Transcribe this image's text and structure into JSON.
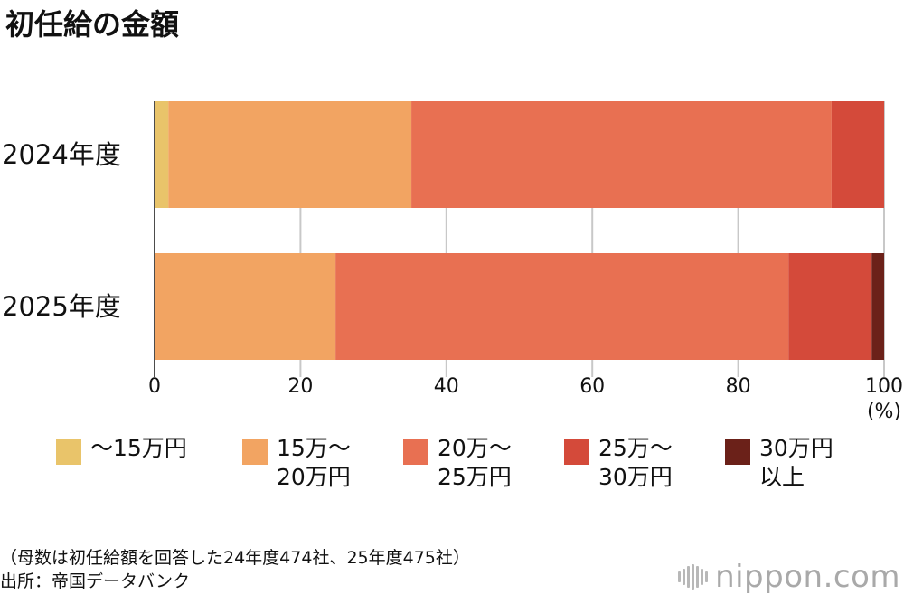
{
  "title": "初任給の金額",
  "chart_data": {
    "type": "bar",
    "orientation": "horizontal",
    "stacked": true,
    "categories": [
      "2024年度",
      "2025年度"
    ],
    "series": [
      {
        "name": "〜15万円",
        "color": "#e9c46a",
        "values": [
          1.9,
          0.0
        ]
      },
      {
        "name": "15万〜\n20万円",
        "color": "#f2a462",
        "values": [
          33.3,
          24.8
        ]
      },
      {
        "name": "20万〜\n25万円",
        "color": "#e87052",
        "values": [
          57.6,
          62.1
        ]
      },
      {
        "name": "25万〜\n30万円",
        "color": "#d44a3a",
        "values": [
          7.2,
          11.4
        ]
      },
      {
        "name": "30万円\n以上",
        "color": "#6b2119",
        "values": [
          0.0,
          1.7
        ]
      }
    ],
    "xlim": [
      0,
      100
    ],
    "xticks": [
      0,
      20,
      40,
      60,
      80,
      100
    ],
    "xtick_labels": [
      "0",
      "20",
      "40",
      "60",
      "80",
      "100"
    ],
    "unit_label": "(%)",
    "grid": true,
    "legend_position": "bottom"
  },
  "note": {
    "line1": "（母数は初任給額を回答した24年度474社、25年度475社）",
    "line2": "出所：帝国データバンク"
  },
  "logo": {
    "text": "nippon.com"
  }
}
